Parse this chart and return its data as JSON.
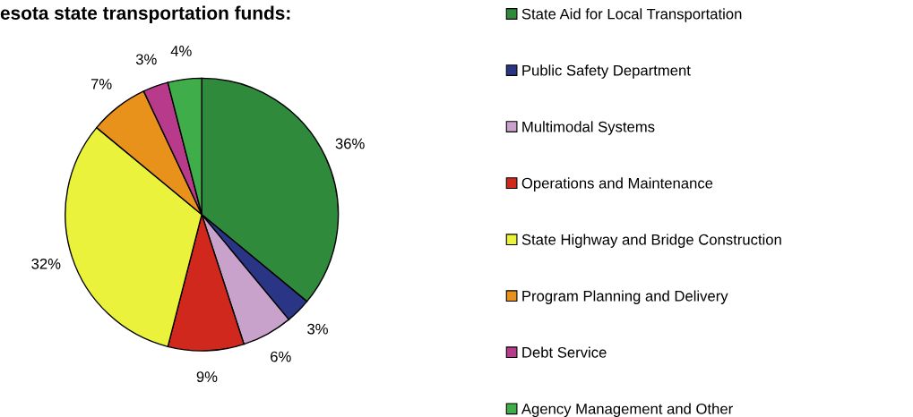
{
  "chart_data": {
    "type": "pie",
    "title": "esota state transportation funds:",
    "categories": [
      "State Aid for Local Transportation",
      "Public Safety Department",
      "Multimodal Systems",
      "Operations and Maintenance",
      "State Highway and Bridge Construction",
      "Program Planning and Delivery",
      "Debt Service",
      "Agency Management and Other"
    ],
    "values": [
      36,
      3,
      6,
      9,
      32,
      7,
      3,
      4
    ],
    "colors": [
      "#2f8a3c",
      "#2b3585",
      "#c9a2cc",
      "#d0281c",
      "#eaf23c",
      "#e8921c",
      "#b83a8a",
      "#3fae4a"
    ],
    "value_labels": [
      "36%",
      "3%",
      "6%",
      "9%",
      "32%",
      "7%",
      "3%",
      "4%"
    ],
    "legend": "right"
  }
}
